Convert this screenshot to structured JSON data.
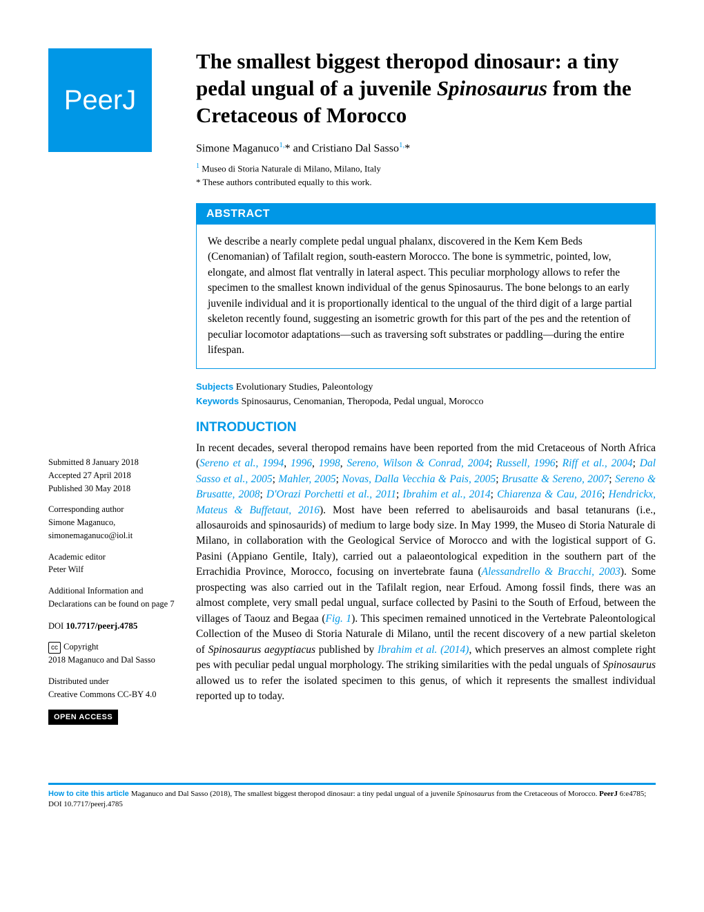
{
  "logo": {
    "text": "PeerJ"
  },
  "title": {
    "pre": "The smallest biggest theropod dinosaur: a tiny pedal ungual of a juvenile ",
    "italic": "Spinosaurus",
    "post": " from the Cretaceous of Morocco"
  },
  "authors": {
    "a1_name": "Simone Maganuco",
    "a1_sup": "1,",
    "sep": " and ",
    "a2_name": "Cristiano Dal Sasso",
    "a2_sup": "1,",
    "star": "*"
  },
  "affiliation": {
    "sup": "1",
    "text": " Museo di Storia Naturale di Milano, Milano, Italy"
  },
  "contrib_note": "* These authors contributed equally to this work.",
  "abstract": {
    "header": "ABSTRACT",
    "text_pre": "We describe a nearly complete pedal ungual phalanx, discovered in the Kem Kem Beds (Cenomanian) of Tafilalt region, south-eastern Morocco. The bone is symmetric, pointed, low, elongate, and almost flat ventrally in lateral aspect. This peculiar morphology allows to refer the specimen to the smallest known individual of the genus ",
    "text_it": "Spinosaurus",
    "text_post": ". The bone belongs to an early juvenile individual and it is proportionally identical to the ungual of the third digit of a large partial skeleton recently found, suggesting an isometric growth for this part of the pes and the retention of peculiar locomotor adaptations—such as traversing soft substrates or paddling—during the entire lifespan."
  },
  "subjects": {
    "label": "Subjects",
    "text": " Evolutionary Studies, Paleontology"
  },
  "keywords": {
    "label": "Keywords",
    "text_it": " Spinosaurus",
    "text_rest": ", Cenomanian, Theropoda, Pedal ungual, Morocco"
  },
  "intro": {
    "head": "INTRODUCTION",
    "p1_pre": "In recent decades, several theropod remains have been reported from the mid Cretaceous of North Africa (",
    "refs": {
      "r1": "Sereno et al., 1994",
      "c1": ", ",
      "r2": "1996",
      "c2": ", ",
      "r3": "1998",
      "c3": ", ",
      "r4": "Sereno, Wilson & Conrad, 2004",
      "c4": "; ",
      "r5": "Russell, 1996",
      "c5": "; ",
      "r6": "Riff et al., 2004",
      "c6": "; ",
      "r7": "Dal Sasso et al., 2005",
      "c7": "; ",
      "r8": "Mahler, 2005",
      "c8": "; ",
      "r9": "Novas, Dalla Vecchia & Pais, 2005",
      "c9": "; ",
      "r10": "Brusatte & Sereno, 2007",
      "c10": "; ",
      "r11": "Sereno & Brusatte, 2008",
      "c11": "; ",
      "r12": "D'Orazi Porchetti et al., 2011",
      "c12": "; ",
      "r13": "Ibrahim et al., 2014",
      "c13": "; ",
      "r14": "Chiarenza & Cau, 2016",
      "c14": "; ",
      "r15": "Hendrickx, Mateus & Buffetaut, 2016",
      "c15": "). "
    },
    "p1_mid": "Most have been referred to abelisauroids and basal tetanurans (i.e., allosauroids and spinosaurids) of medium to large body size. In May 1999, the Museo di Storia Naturale di Milano, in collaboration with the Geological Service of Morocco and with the logistical support of G. Pasini (Appiano Gentile, Italy), carried out a palaeontological expedition in the southern part of the Errachidia Province, Morocco, focusing on invertebrate fauna (",
    "ref_aless": "Alessandrello & Bracchi, 2003",
    "p1_post_a": "). Some prospecting was also carried out in the Tafilalt region, near Erfoud. Among fossil finds, there was an almost complete, very small pedal ungual, surface collected by Pasini to the South of Erfoud, between the villages of Taouz and Begaa (",
    "ref_fig": "Fig. 1",
    "p1_post_b": "). This specimen remained unnoticed in the Vertebrate Paleontological Collection of the Museo di Storia Naturale di Milano, until the recent discovery of a new partial skeleton of ",
    "it_sp": "Spinosaurus aegyptiacus",
    "p1_post_c": " published by ",
    "ref_ibra": "Ibrahim et al. (2014)",
    "p1_post_d": ", which preserves an almost complete right pes with peculiar pedal ungual morphology. The striking similarities with the pedal unguals of ",
    "it_sp2": "Spinosaurus",
    "p1_post_e": " allowed us to refer the isolated specimen to this genus, of which it represents the smallest individual reported up to today."
  },
  "sidebar": {
    "submitted_label": "Submitted ",
    "submitted_date": "8 January 2018",
    "accepted_label": "Accepted ",
    "accepted_date": "27 April 2018",
    "published_label": "Published ",
    "published_date": "30 May 2018",
    "corresp_label": "Corresponding author",
    "corresp_name": "Simone Maganuco,",
    "corresp_email": "simonemaganuco@iol.it",
    "editor_label": "Academic editor",
    "editor_name": "Peter Wilf",
    "addinfo": "Additional Information and Declarations can be found on page 7",
    "doi_label": "DOI ",
    "doi": "10.7717/peerj.4785",
    "copyright_label": "Copyright",
    "copyright_text": "2018 Maganuco and Dal Sasso",
    "dist_label": "Distributed under",
    "dist_text": "Creative Commons CC-BY 4.0",
    "open_access": "OPEN ACCESS"
  },
  "footer": {
    "cite_label": "How to cite this article ",
    "cite_pre": "Maganuco and Dal Sasso (2018), The smallest biggest theropod dinosaur: a tiny pedal ungual of a juvenile ",
    "cite_it": "Spinosaurus",
    "cite_post": " from the Cretaceous of Morocco. ",
    "cite_journal": "PeerJ ",
    "cite_vol": "6:e4785; DOI 10.7717/peerj.4785"
  },
  "colors": {
    "brand": "#0097e6",
    "black": "#000000",
    "white": "#ffffff"
  }
}
